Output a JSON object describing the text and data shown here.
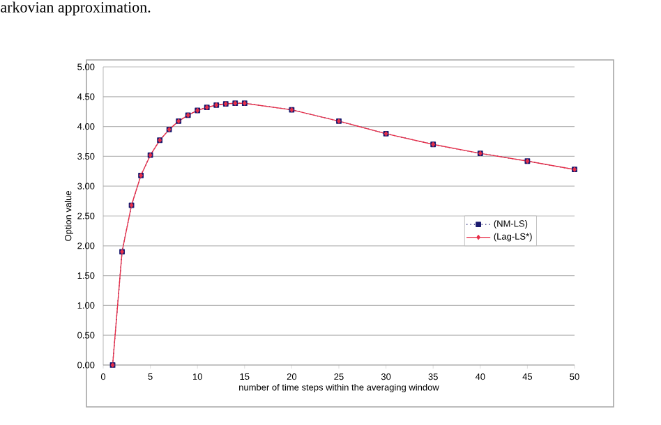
{
  "chart_data": {
    "type": "line",
    "xlabel": "number of time steps within the averaging window",
    "ylabel": "Option value",
    "annotations": [
      "arkovian approximation."
    ],
    "x": [
      1,
      2,
      3,
      4,
      5,
      6,
      7,
      8,
      9,
      10,
      11,
      12,
      13,
      14,
      15,
      20,
      25,
      30,
      35,
      40,
      45,
      50
    ],
    "series": [
      {
        "name": "(NM-LS)",
        "color": "#1a1a6e",
        "marker": "square",
        "line_style": "dotted",
        "values": [
          0,
          1.9,
          2.68,
          3.18,
          3.52,
          3.77,
          3.95,
          4.09,
          4.19,
          4.27,
          4.32,
          4.36,
          4.38,
          4.39,
          4.39,
          4.28,
          4.09,
          3.88,
          3.7,
          3.55,
          3.42,
          3.28
        ]
      },
      {
        "name": "(Lag-LS*)",
        "color": "#e8304a",
        "marker": "diamond",
        "line_style": "solid",
        "values": [
          0,
          1.9,
          2.68,
          3.18,
          3.52,
          3.77,
          3.95,
          4.09,
          4.19,
          4.27,
          4.32,
          4.36,
          4.38,
          4.39,
          4.39,
          4.28,
          4.09,
          3.88,
          3.7,
          3.55,
          3.42,
          3.28
        ]
      }
    ],
    "xlim": [
      0,
      50
    ],
    "xticks": [
      0,
      5,
      10,
      15,
      20,
      25,
      30,
      35,
      40,
      45,
      50
    ],
    "ylim": [
      0,
      5
    ],
    "yticks": [
      {
        "value": 0,
        "label": "0.00"
      },
      {
        "value": 0.5,
        "label": "0.50"
      },
      {
        "value": 1,
        "label": "1.00"
      },
      {
        "value": 1.5,
        "label": "1.50"
      },
      {
        "value": 2,
        "label": "2.00"
      },
      {
        "value": 2.5,
        "label": "2.50"
      },
      {
        "value": 3,
        "label": "3.00"
      },
      {
        "value": 3.5,
        "label": "3.50"
      },
      {
        "value": 4,
        "label": "4.00"
      },
      {
        "value": 4.5,
        "label": "4.50"
      },
      {
        "value": 5,
        "label": "5.00"
      }
    ],
    "grid": "y",
    "legend": "right"
  }
}
